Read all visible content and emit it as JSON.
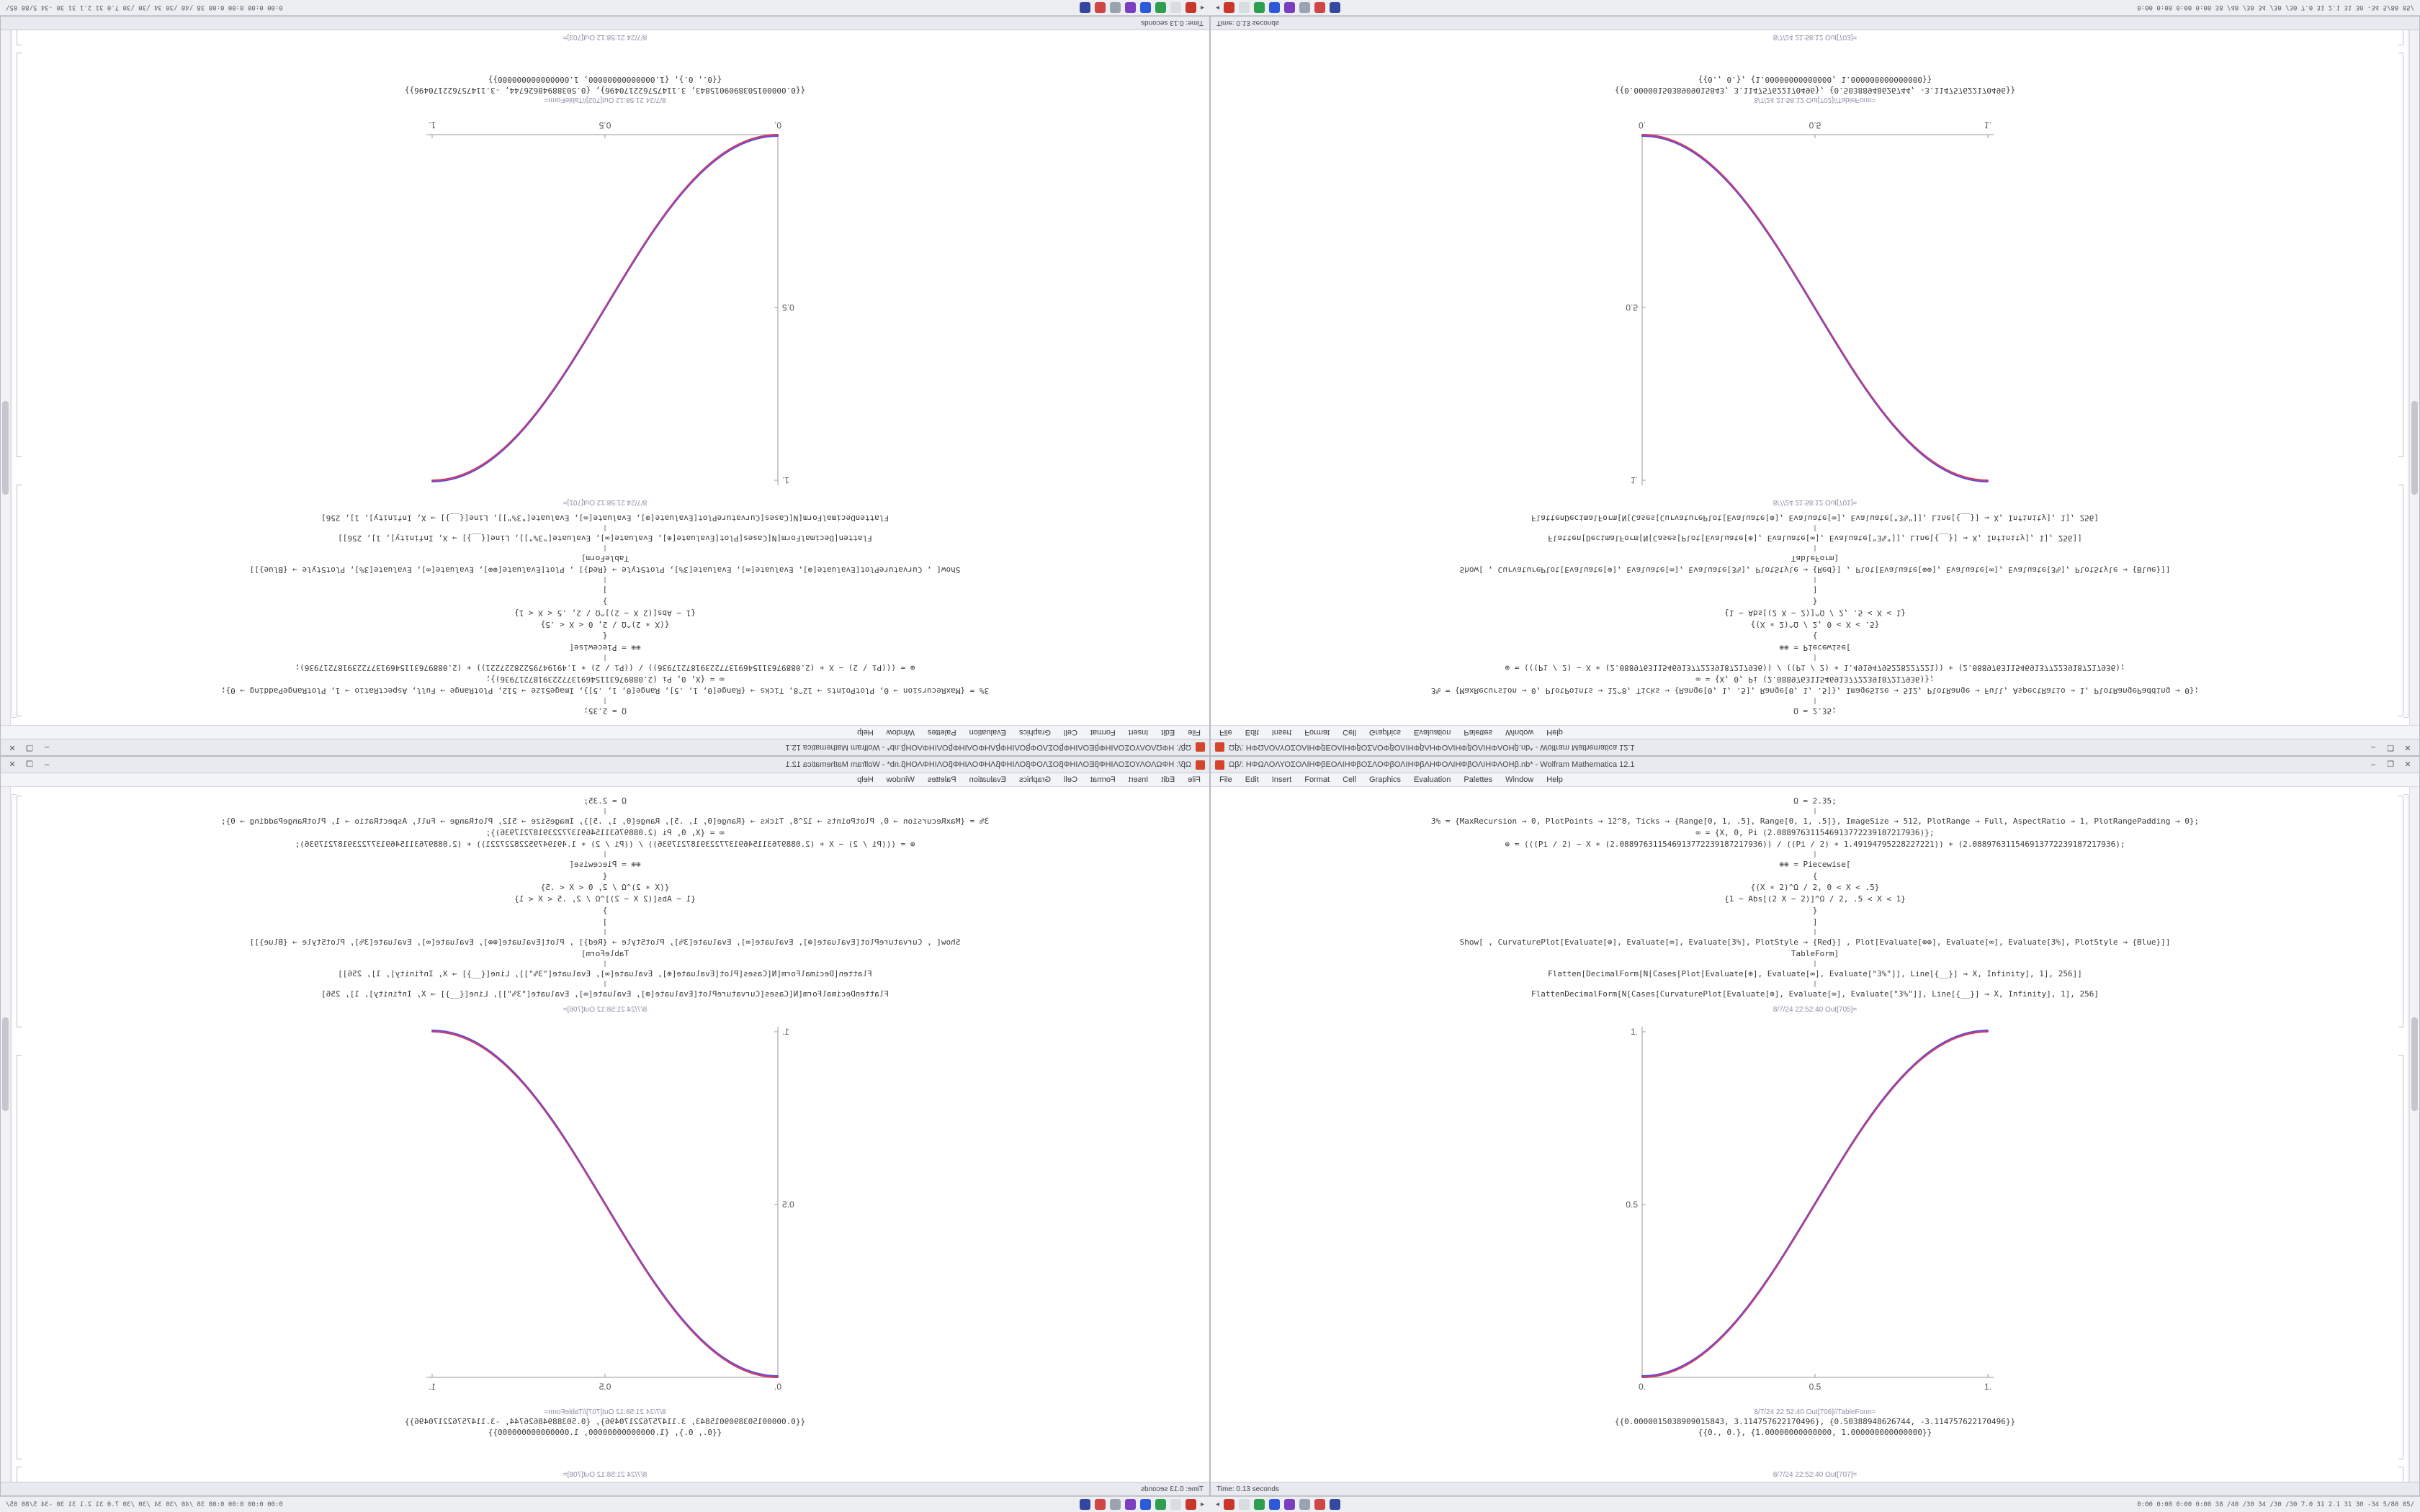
{
  "window_controls": {
    "minimize": "–",
    "maximize": "❐",
    "close": "✕"
  },
  "notebook": {
    "title": "Ωβ/: ΗΦΩΛΟΛΥΟΣΟΛΙΗΦβΕΟΛΙΗΦβΟΣΛΟΦβΟΛΙΗΦβΛΗΦΟΛΙΗΦβΟΛΙΗΦΛΟΗβ.nb* - Wolfram Mathematica 12.1",
    "menu": [
      "File",
      "Edit",
      "Insert",
      "Format",
      "Cell",
      "Graphics",
      "Evaluation",
      "Palettes",
      "Window",
      "Help"
    ],
    "input_lines": [
      "Ω = 2.35;",
      "∥",
      "3% = {MaxRecursion → 0, PlotPoints → 12^8, Ticks → {Range[0, 1, .5], Range[0, 1, .5]}, ImageSize → 512, PlotRange → Full, AspectRatio → 1, PlotRangePadding → 0};",
      "∞ = {X, 0, Pi (2.088976311546913772239187217936)};",
      "⊕ = (((Pi / 2) − X ∗ (2.088976311546913772239187217936)) / ((Pi / 2) ∗ 1.49194795228227221)) ∗ (2.088976311546913772239187217936);",
      "∥",
      "⊕⊕ = Piecewise[",
      "{",
      "{(X ∗ 2)^Ω / 2, 0 < X < .5}",
      "{1 − Abs[(2 X − 2)]^Ω / 2, .5 < X < 1}",
      "}",
      "]",
      "∥",
      "Show[ , CurvaturePlot[Evaluate[⊕], Evaluate[∞], Evaluate[3%], PlotStyle → {Red}] , Plot[Evaluate[⊕⊕], Evaluate[∞], Evaluate[3%], PlotStyle → {Blue}]]",
      "TableForm]",
      "∥",
      "Flatten[DecimalForm[N[Cases[Plot[Evaluate[⊕], Evaluate[∞], Evaluate[\"3%\"]], Line[{__}] → X, Infinity], 1], 256]]",
      "∥",
      "FlattenDecimalForm[N[Cases[CurvaturePlot[Evaluate[⊕], Evaluate[∞], Evaluate[\"3%\"]], Line[{__}] → X, Infinity], 1], 256]"
    ],
    "table_rows": [
      "{{0.0000015038909015843, 3.114757622170496}, {0.50388948626744, -3.114757622170496}}",
      "{{0., 0.}, {1.00000000000000, 1.000000000000000}}"
    ],
    "status": "Time: 0.13 seconds",
    "plot": {
      "type": "line",
      "x_range": [
        0,
        1
      ],
      "y_range": [
        0,
        1
      ],
      "x_tick_labels": [
        "0.",
        "0.5",
        "1."
      ],
      "y_tick_labels": [
        "0.5",
        "1."
      ],
      "series": [
        {
          "name": "CurvaturePlot",
          "color": "#cc2626"
        },
        {
          "name": "Plot",
          "color": "#2a33cc"
        }
      ],
      "curve_shape": "sigmoid from (0,0) to (1,1)"
    }
  },
  "tiles": [
    {
      "position": "top-left",
      "out1_label": "8/7/24 21:58:12  Out[701]=",
      "out2_label": "8/7/24 21:58:12  Out[702]//TableForm=",
      "trailing_out_label": "8/7/24 21:58:12  Out[703]="
    },
    {
      "position": "top-right",
      "out1_label": "8/7/24 21:58:12  Out[701]=",
      "out2_label": "8/7/24 21:58:12  Out[702]//TableForm=",
      "trailing_out_label": "8/7/24 21:58:12  Out[703]="
    },
    {
      "position": "bottom-left",
      "out1_label": "8/7/24 21:58:12  Out[706]=",
      "out2_label": "8/7/24 21:58:12  Out[707]//TableForm=",
      "trailing_out_label": "8/7/24 21:58:12  Out[708]="
    },
    {
      "position": "bottom-right",
      "out1_label": "8/7/24 22:52:40  Out[705]=",
      "out2_label": "8/7/24 22:52:40  Out[706]//TableForm=",
      "trailing_out_label": "8/7/24 22:52:40  Out[707]="
    }
  ],
  "taskbar": {
    "collapse_arrow": "◂",
    "icons": [
      {
        "name": "app-red",
        "color": "#c8362c"
      },
      {
        "name": "app-light",
        "color": "#d8dde2"
      },
      {
        "name": "app-green",
        "color": "#2e9e4f"
      },
      {
        "name": "app-blue",
        "color": "#2d5bd8"
      },
      {
        "name": "app-purple",
        "color": "#7a3fc0"
      },
      {
        "name": "app-gray",
        "color": "#9aa4ae"
      },
      {
        "name": "app-crimson",
        "color": "#d04545"
      },
      {
        "name": "app-navy",
        "color": "#35479e"
      }
    ],
    "stats_text": "0:00 0:00 0:00 0:00  38 /40 /30  34 /30 /30  7.0  31  2.1  31  30  -34  5/80  05/"
  }
}
